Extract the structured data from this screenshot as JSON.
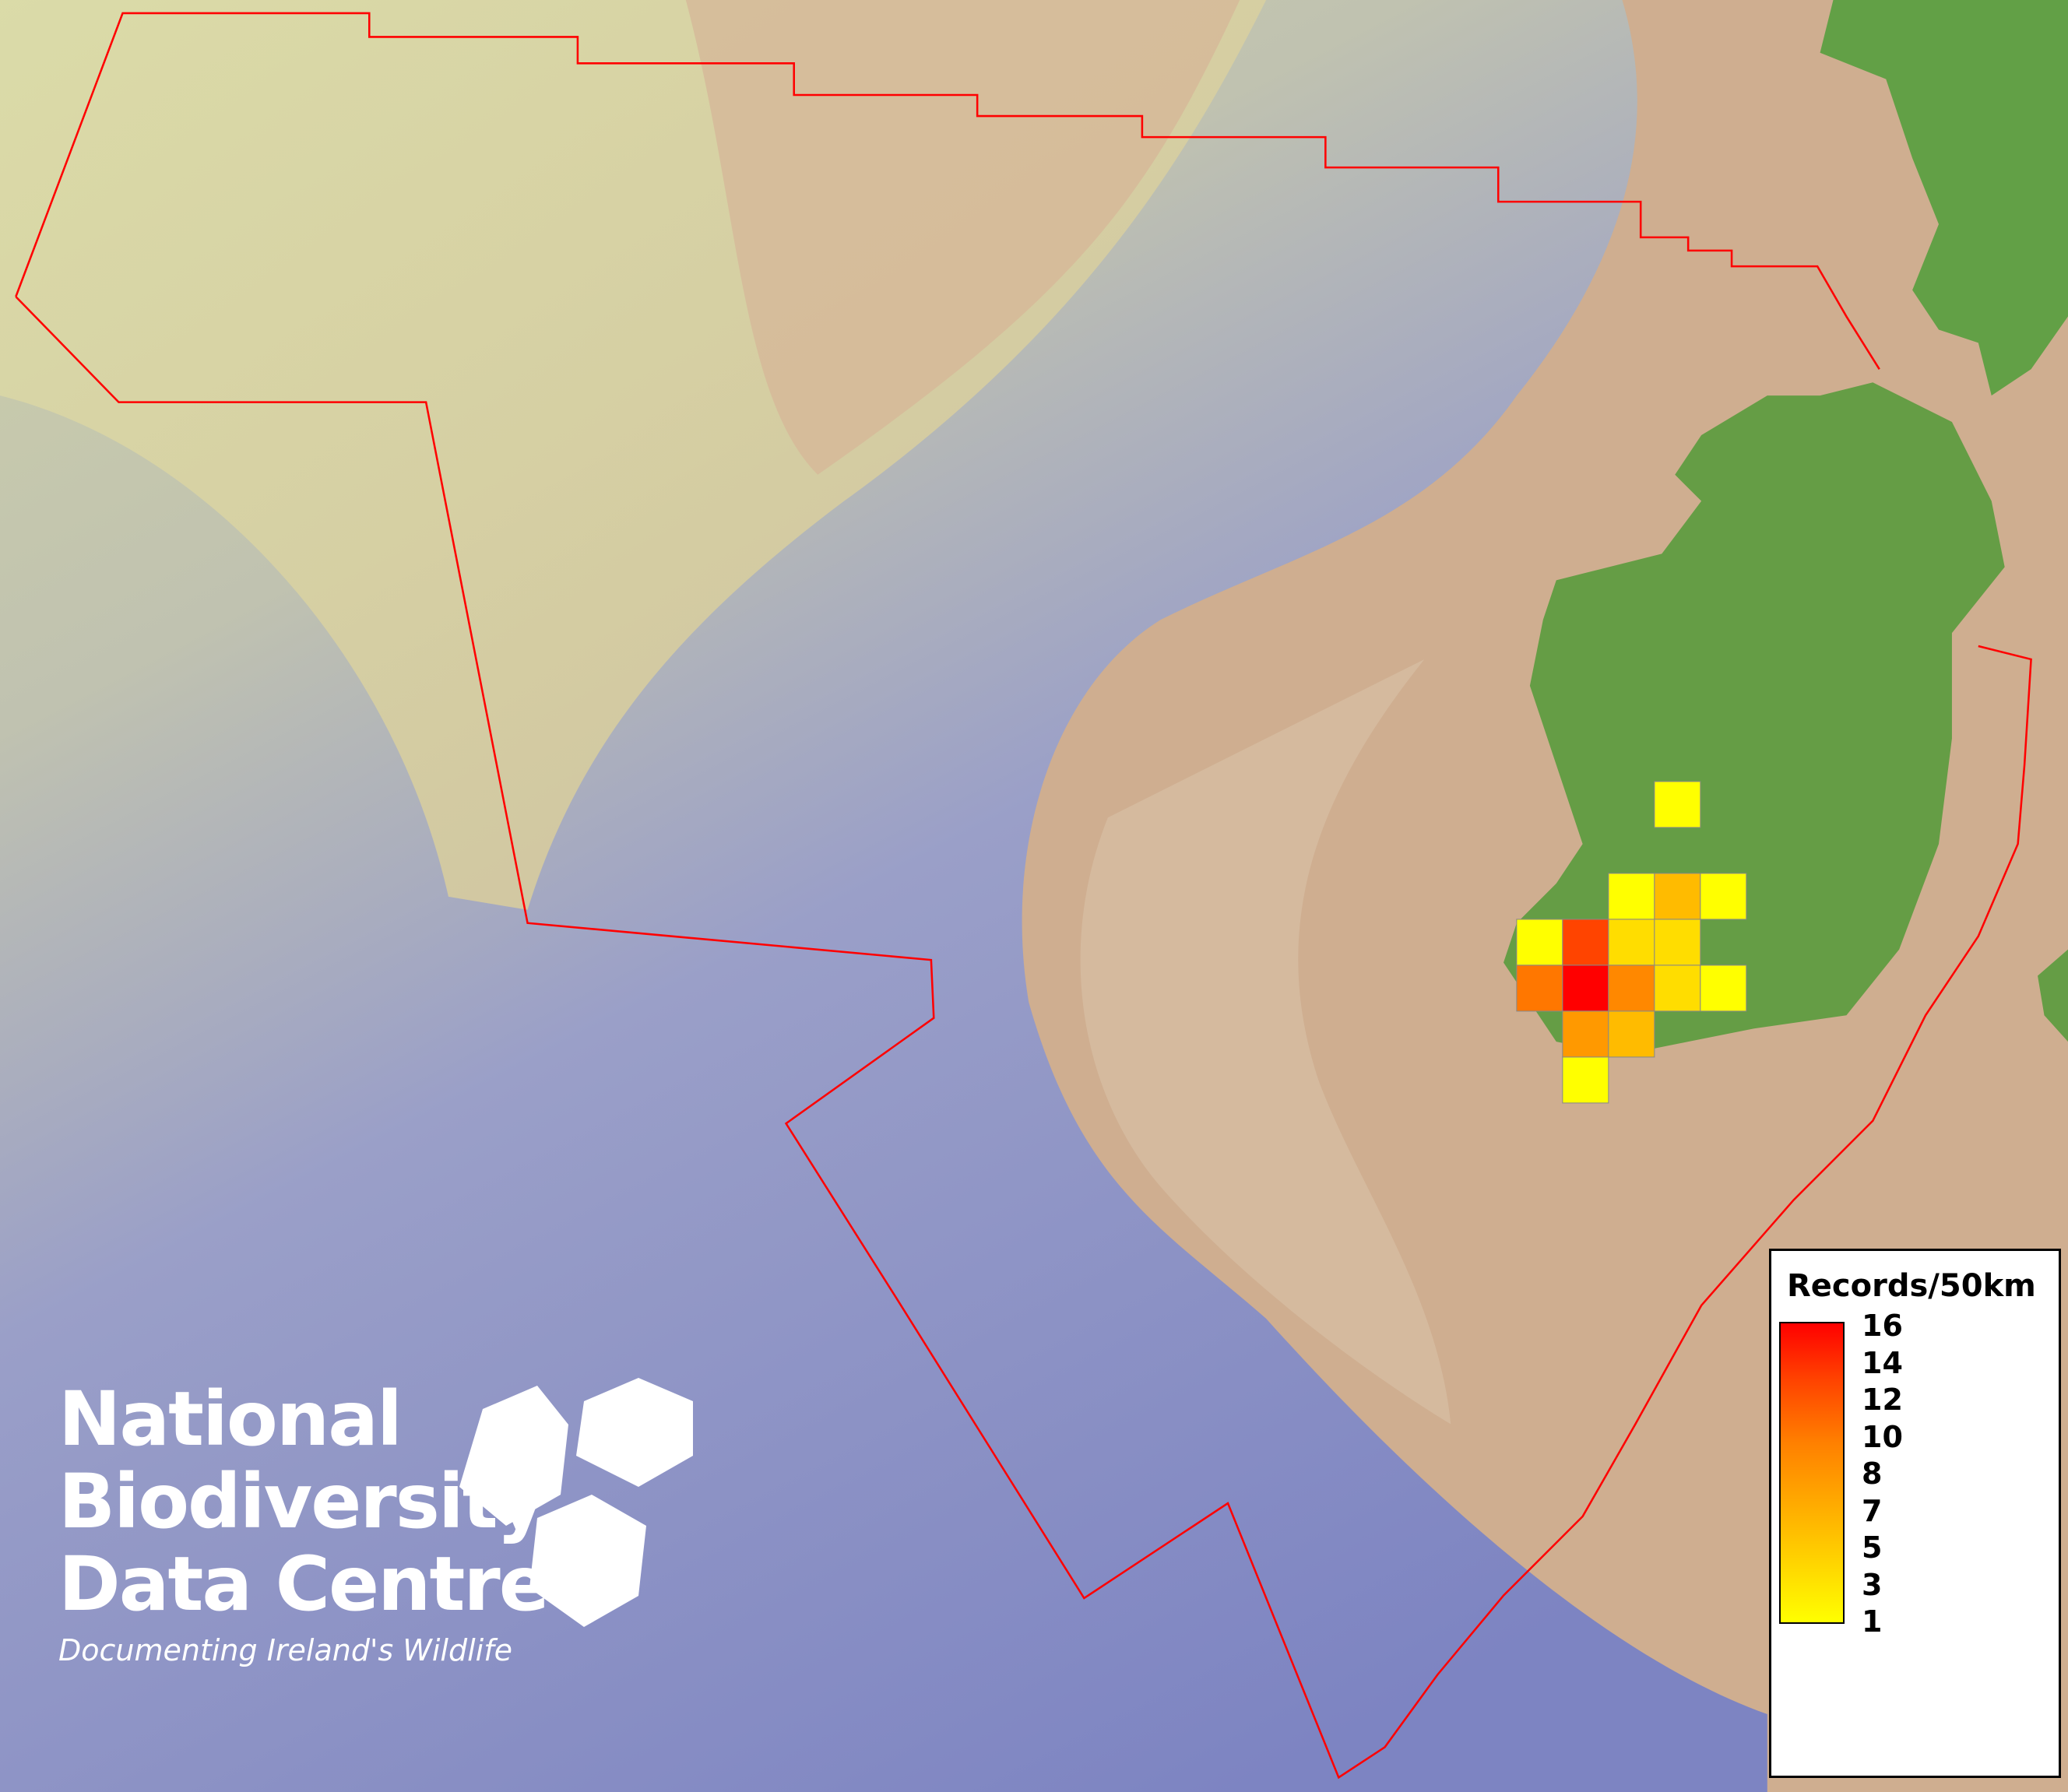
{
  "legend": {
    "title": "Records/50km",
    "ticks": [
      "16",
      "14",
      "12",
      "10",
      "8",
      "7",
      "5",
      "3",
      "1"
    ],
    "color_low": "#ffff00",
    "color_high": "#ff0000"
  },
  "logo": {
    "line1": "National",
    "line2": "Biodiversity",
    "line3": "Data Centre",
    "tagline": "Documenting Ireland's Wildlife"
  },
  "colors": {
    "boundary": "#ff0000",
    "land": "#659d45",
    "shelf": "#cfae90",
    "deep": "#7c84c4"
  },
  "grid_cells": [
    {
      "col": 3,
      "row": 0,
      "records": 1
    },
    {
      "col": 2,
      "row": 2,
      "records": 1
    },
    {
      "col": 3,
      "row": 2,
      "records": 5
    },
    {
      "col": 4,
      "row": 2,
      "records": 1
    },
    {
      "col": 0,
      "row": 3,
      "records": 1
    },
    {
      "col": 1,
      "row": 3,
      "records": 12
    },
    {
      "col": 2,
      "row": 3,
      "records": 3
    },
    {
      "col": 3,
      "row": 3,
      "records": 3
    },
    {
      "col": 0,
      "row": 4,
      "records": 9
    },
    {
      "col": 1,
      "row": 4,
      "records": 16
    },
    {
      "col": 2,
      "row": 4,
      "records": 8
    },
    {
      "col": 3,
      "row": 4,
      "records": 3
    },
    {
      "col": 4,
      "row": 4,
      "records": 1
    },
    {
      "col": 1,
      "row": 5,
      "records": 7
    },
    {
      "col": 2,
      "row": 5,
      "records": 5
    },
    {
      "col": 1,
      "row": 6,
      "records": 1
    }
  ]
}
